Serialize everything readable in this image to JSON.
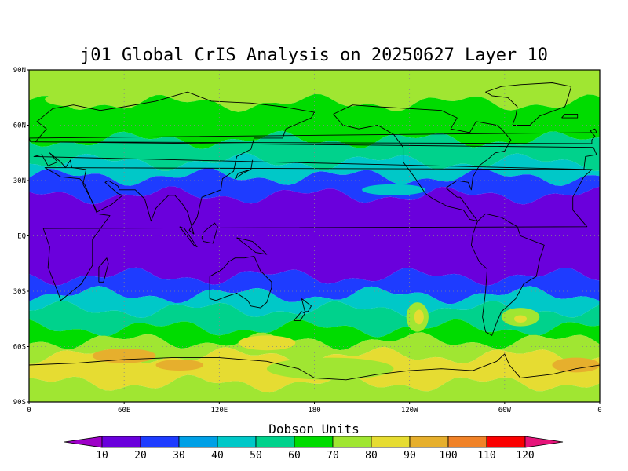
{
  "chart_data": {
    "type": "heatmap",
    "title": "j01 Global CrIS Analysis on 20250627 Layer 10",
    "x_ticks": [
      "0",
      "60E",
      "120E",
      "180",
      "120W",
      "60W",
      "0"
    ],
    "y_ticks": [
      "90N",
      "60N",
      "30N",
      "EQ",
      "30S",
      "60S",
      "90S"
    ],
    "xlim_deg": [
      0,
      360
    ],
    "ylim_deg": [
      -90,
      90
    ],
    "grid": true,
    "colorbar": {
      "title": "Dobson Units",
      "labels": [
        "10",
        "20",
        "30",
        "40",
        "50",
        "60",
        "70",
        "80",
        "90",
        "100",
        "110",
        "120"
      ],
      "colors": [
        "#9e00c8",
        "#6a00dc",
        "#1e3cff",
        "#00a0e6",
        "#00c8c8",
        "#00d28c",
        "#00dc00",
        "#a0e632",
        "#e6dc32",
        "#e6af2d",
        "#f08228",
        "#fa0000",
        "#e6147a"
      ]
    },
    "latitude_bands": [
      {
        "lat_min": 72,
        "lat_max": 90,
        "value": 72
      },
      {
        "lat_min": 52,
        "lat_max": 72,
        "value": 68
      },
      {
        "lat_min": 40,
        "lat_max": 52,
        "value": 55
      },
      {
        "lat_min": 32,
        "lat_max": 40,
        "value": 44
      },
      {
        "lat_min": 22,
        "lat_max": 32,
        "value": 28
      },
      {
        "lat_min": -22,
        "lat_max": 22,
        "value": 18
      },
      {
        "lat_min": -32,
        "lat_max": -22,
        "value": 28
      },
      {
        "lat_min": -40,
        "lat_max": -32,
        "value": 44
      },
      {
        "lat_min": -50,
        "lat_max": -40,
        "value": 55
      },
      {
        "lat_min": -57,
        "lat_max": -50,
        "value": 68
      },
      {
        "lat_min": -65,
        "lat_max": -57,
        "value": 78
      },
      {
        "lat_min": -80,
        "lat_max": -65,
        "value": 88
      },
      {
        "lat_min": -90,
        "lat_max": -80,
        "value": 78
      }
    ],
    "features": [
      {
        "lon": 300,
        "lat": 85,
        "rlon": 30,
        "rlat": 5,
        "value": 78
      },
      {
        "lon": 150,
        "lat": 78,
        "rlon": 25,
        "rlat": 6,
        "value": 78
      },
      {
        "lon": 30,
        "lat": 74,
        "rlon": 20,
        "rlat": 4,
        "value": 78
      },
      {
        "lon": 230,
        "lat": 25,
        "rlon": 20,
        "rlat": 3,
        "value": 44
      },
      {
        "lon": 245,
        "lat": -44,
        "rlon": 7,
        "rlat": 8,
        "value": 78
      },
      {
        "lon": 246,
        "lat": -44,
        "rlon": 3,
        "rlat": 4,
        "value": 88
      },
      {
        "lon": 310,
        "lat": -44,
        "rlon": 12,
        "rlat": 5,
        "value": 78
      },
      {
        "lon": 310,
        "lat": -45,
        "rlon": 4,
        "rlat": 2,
        "value": 88
      },
      {
        "lon": 60,
        "lat": -65,
        "rlon": 20,
        "rlat": 4,
        "value": 98
      },
      {
        "lon": 150,
        "lat": -58,
        "rlon": 18,
        "rlat": 4,
        "value": 88
      },
      {
        "lon": 95,
        "lat": -70,
        "rlon": 15,
        "rlat": 3,
        "value": 98
      },
      {
        "lon": 345,
        "lat": -70,
        "rlon": 15,
        "rlat": 4,
        "value": 98
      },
      {
        "lon": 190,
        "lat": -72,
        "rlon": 40,
        "rlat": 6,
        "value": 78
      }
    ]
  }
}
